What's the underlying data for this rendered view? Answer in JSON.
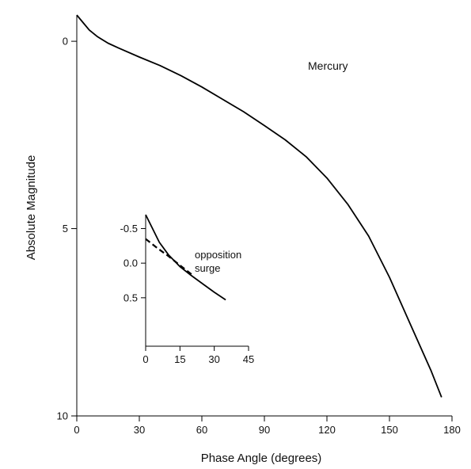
{
  "chart_data": [
    {
      "type": "line",
      "title": "",
      "xlabel": "Phase Angle (degrees)",
      "ylabel": "Absolute Magnitude",
      "xlim": [
        0,
        180
      ],
      "ylim": [
        10,
        -0.7
      ],
      "y_inverted": true,
      "xticks": [
        0,
        30,
        60,
        90,
        120,
        150,
        180
      ],
      "yticks": [
        0,
        5,
        10
      ],
      "grid": false,
      "annotations": [
        {
          "text": "Mercury"
        }
      ],
      "series": [
        {
          "x": [
            0,
            3,
            6,
            10,
            15,
            20,
            30,
            40,
            50,
            60,
            70,
            80,
            90,
            100,
            110,
            120,
            130,
            140,
            150,
            160,
            170,
            175
          ],
          "y": [
            -0.7,
            -0.5,
            -0.3,
            -0.12,
            0.05,
            0.18,
            0.42,
            0.65,
            0.92,
            1.22,
            1.55,
            1.88,
            2.25,
            2.63,
            3.08,
            3.65,
            4.35,
            5.2,
            6.3,
            7.55,
            8.8,
            9.5
          ]
        }
      ]
    },
    {
      "type": "line",
      "title": "",
      "xlabel": "",
      "ylabel": "",
      "xlim": [
        0,
        45
      ],
      "ylim": [
        1.2,
        -0.7
      ],
      "y_inverted": true,
      "xticks": [
        0,
        15,
        30,
        45
      ],
      "yticks": [
        "-0.5",
        "0.0",
        "0.5"
      ],
      "ytick_values": [
        -0.5,
        0,
        0.5
      ],
      "grid": false,
      "annotations": [
        {
          "text": "opposition"
        },
        {
          "text": "surge"
        }
      ],
      "series": [
        {
          "style": "solid",
          "x": [
            0,
            3,
            6,
            10,
            15,
            20,
            25,
            30,
            35
          ],
          "y": [
            -0.7,
            -0.5,
            -0.3,
            -0.12,
            0.05,
            0.18,
            0.3,
            0.42,
            0.53
          ]
        },
        {
          "style": "dashed",
          "x": [
            0,
            5,
            10,
            15,
            20
          ],
          "y": [
            -0.35,
            -0.22,
            -0.1,
            0.03,
            0.16
          ]
        }
      ]
    }
  ]
}
